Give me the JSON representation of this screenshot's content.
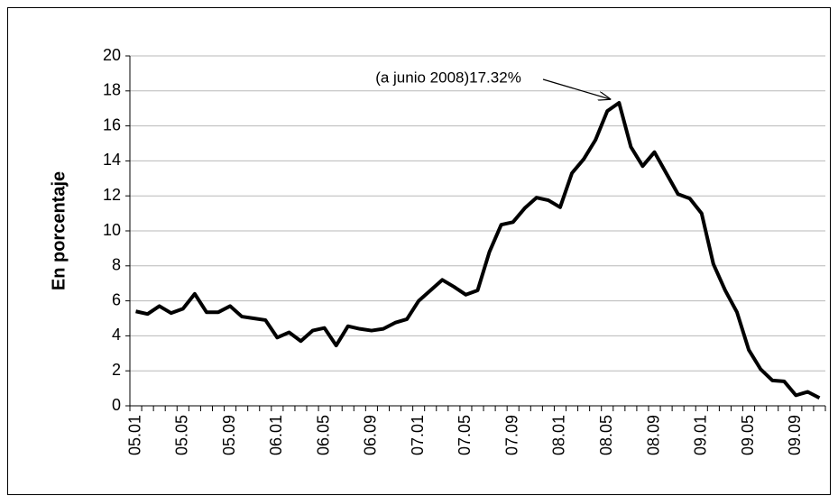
{
  "chart_data": {
    "type": "line",
    "y_label": "En porcentaje",
    "annotation": "(a junio 2008)17.32%",
    "categories": [
      "05.01",
      null,
      null,
      null,
      "05.05",
      null,
      null,
      null,
      "05.09",
      null,
      null,
      null,
      "06.01",
      null,
      null,
      null,
      "06.05",
      null,
      null,
      null,
      "06.09",
      null,
      null,
      null,
      "07.01",
      null,
      null,
      null,
      "07.05",
      null,
      null,
      null,
      "07.09",
      null,
      null,
      null,
      "08.01",
      null,
      null,
      null,
      "08.05",
      null,
      null,
      null,
      "08.09",
      null,
      null,
      null,
      "09.01",
      null,
      null,
      null,
      "09.05",
      null,
      null,
      null,
      "09.09",
      null,
      null
    ],
    "series": [
      {
        "color": "#000000",
        "values": [
          5.4,
          5.25,
          5.7,
          5.3,
          5.55,
          6.4,
          5.35,
          5.35,
          5.7,
          5.1,
          5.0,
          4.9,
          3.9,
          4.2,
          3.7,
          4.3,
          4.45,
          3.45,
          4.55,
          4.4,
          4.3,
          4.4,
          4.75,
          4.95,
          6.0,
          6.6,
          7.2,
          6.8,
          6.35,
          6.6,
          8.8,
          10.35,
          10.5,
          11.3,
          11.9,
          11.75,
          11.35,
          13.3,
          14.1,
          15.2,
          16.85,
          17.32,
          14.8,
          13.7,
          14.5,
          13.3,
          12.1,
          11.85,
          11.0,
          8.1,
          6.6,
          5.35,
          3.2,
          2.1,
          1.45,
          1.4,
          0.6,
          0.8,
          0.45
        ]
      }
    ],
    "ylim": [
      0,
      20
    ],
    "yticks": [
      0,
      2,
      4,
      6,
      8,
      10,
      12,
      14,
      16,
      18,
      20
    ],
    "grid": true
  }
}
